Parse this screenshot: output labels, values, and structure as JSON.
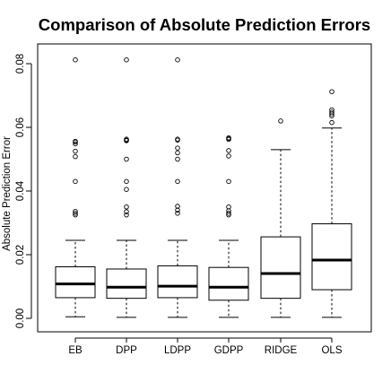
{
  "chart_data": {
    "type": "boxplot",
    "title": "Comparison of Absolute Prediction Errors",
    "ylabel": "Absolute Prediction Error",
    "xlabel": "",
    "ylim": [
      -0.003,
      0.085
    ],
    "y_ticks": [
      0.0,
      0.02,
      0.04,
      0.06,
      0.08
    ],
    "y_tick_labels": [
      "0.00",
      "0.02",
      "0.04",
      "0.06",
      "0.08"
    ],
    "categories": [
      "EB",
      "DPP",
      "LDPP",
      "GDPP",
      "RIDGE",
      "OLS"
    ],
    "boxes": [
      {
        "name": "EB",
        "whisker_low": 0.0005,
        "q1": 0.0065,
        "median": 0.0108,
        "q3": 0.0162,
        "whisker_high": 0.0245,
        "outliers": [
          0.0812,
          0.0556,
          0.0554,
          0.0548,
          0.0525,
          0.0508,
          0.043,
          0.0336,
          0.033,
          0.0325
        ]
      },
      {
        "name": "DPP",
        "whisker_low": 0.0003,
        "q1": 0.0063,
        "median": 0.0098,
        "q3": 0.0155,
        "whisker_high": 0.0245,
        "outliers": [
          0.0812,
          0.0563,
          0.056,
          0.0558,
          0.05,
          0.043,
          0.0405,
          0.035,
          0.0335,
          0.0325
        ]
      },
      {
        "name": "LDPP",
        "whisker_low": 0.0003,
        "q1": 0.0065,
        "median": 0.0101,
        "q3": 0.0165,
        "whisker_high": 0.0245,
        "outliers": [
          0.0812,
          0.0563,
          0.056,
          0.0535,
          0.052,
          0.05,
          0.043,
          0.0352,
          0.034,
          0.033
        ]
      },
      {
        "name": "GDPP",
        "whisker_low": 0.0003,
        "q1": 0.0057,
        "median": 0.0098,
        "q3": 0.016,
        "whisker_high": 0.0245,
        "outliers": [
          0.0567,
          0.0565,
          0.0562,
          0.0527,
          0.051,
          0.043,
          0.035,
          0.0338,
          0.033,
          0.0325
        ]
      },
      {
        "name": "RIDGE",
        "whisker_low": 0.0003,
        "q1": 0.0063,
        "median": 0.0141,
        "q3": 0.0256,
        "whisker_high": 0.053,
        "outliers": [
          0.062
        ]
      },
      {
        "name": "OLS",
        "whisker_low": 0.0003,
        "q1": 0.009,
        "median": 0.0183,
        "q3": 0.0297,
        "whisker_high": 0.0598,
        "outliers": [
          0.0712,
          0.0655,
          0.0648,
          0.0642,
          0.0636,
          0.0615
        ]
      }
    ],
    "grid": false,
    "legend": "none"
  }
}
